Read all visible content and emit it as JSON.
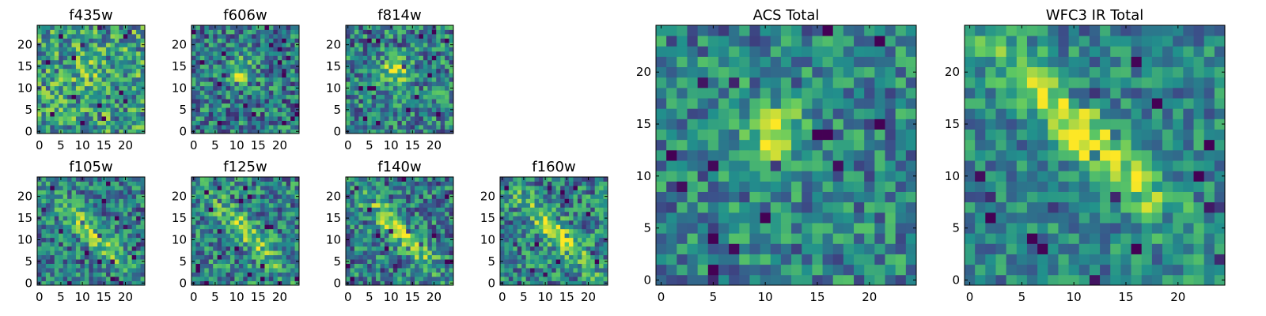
{
  "figure": {
    "background": "#ffffff",
    "colormap": "viridis",
    "colormap_stops": [
      "#440154",
      "#3b528b",
      "#21918c",
      "#5ec962",
      "#fde725"
    ]
  },
  "chart_data": [
    {
      "type": "heatmap",
      "title": "f435w",
      "grid": false,
      "xlim": [
        -0.5,
        24.5
      ],
      "ylim": [
        -0.5,
        24.5
      ],
      "xticks": [
        0,
        5,
        10,
        15,
        20
      ],
      "yticks": [
        0,
        5,
        10,
        15,
        20
      ],
      "size": [
        25,
        25
      ],
      "structure": "noise",
      "peak": [
        11,
        14
      ],
      "peak_strength": 0.15,
      "noise": 0.34,
      "bias": 0.55,
      "seed": 11
    },
    {
      "type": "heatmap",
      "title": "f606w",
      "grid": false,
      "xlim": [
        -0.5,
        24.5
      ],
      "ylim": [
        -0.5,
        24.5
      ],
      "xticks": [
        0,
        5,
        10,
        15,
        20
      ],
      "yticks": [
        0,
        5,
        10,
        15,
        20
      ],
      "size": [
        25,
        25
      ],
      "structure": "blob",
      "peak": [
        11,
        14
      ],
      "peak_strength": 0.4,
      "noise": 0.3,
      "bias": 0.42,
      "seed": 22
    },
    {
      "type": "heatmap",
      "title": "f814w",
      "grid": false,
      "xlim": [
        -0.5,
        24.5
      ],
      "ylim": [
        -0.5,
        24.5
      ],
      "xticks": [
        0,
        5,
        10,
        15,
        20
      ],
      "yticks": [
        0,
        5,
        10,
        15,
        20
      ],
      "size": [
        25,
        25
      ],
      "structure": "blob",
      "peak": [
        11,
        14
      ],
      "peak_strength": 0.45,
      "noise": 0.3,
      "bias": 0.45,
      "seed": 33
    },
    {
      "type": "heatmap",
      "title": "f105w",
      "grid": false,
      "xlim": [
        -0.5,
        24.5
      ],
      "ylim": [
        -0.5,
        24.5
      ],
      "xticks": [
        0,
        5,
        10,
        15,
        20
      ],
      "yticks": [
        0,
        5,
        10,
        15,
        20
      ],
      "size": [
        25,
        25
      ],
      "structure": "diagonal",
      "peak": [
        12,
        12
      ],
      "peak_strength": 0.4,
      "noise": 0.28,
      "bias": 0.42,
      "seed": 44
    },
    {
      "type": "heatmap",
      "title": "f125w",
      "grid": false,
      "xlim": [
        -0.5,
        24.5
      ],
      "ylim": [
        -0.5,
        24.5
      ],
      "xticks": [
        0,
        5,
        10,
        15,
        20
      ],
      "yticks": [
        0,
        5,
        10,
        15,
        20
      ],
      "size": [
        25,
        25
      ],
      "structure": "diagonal",
      "peak": [
        12,
        12
      ],
      "peak_strength": 0.35,
      "noise": 0.3,
      "bias": 0.45,
      "seed": 55
    },
    {
      "type": "heatmap",
      "title": "f140w",
      "grid": false,
      "xlim": [
        -0.5,
        24.5
      ],
      "ylim": [
        -0.5,
        24.5
      ],
      "xticks": [
        0,
        5,
        10,
        15,
        20
      ],
      "yticks": [
        0,
        5,
        10,
        15,
        20
      ],
      "size": [
        25,
        25
      ],
      "structure": "diagonal",
      "peak": [
        12,
        12
      ],
      "peak_strength": 0.4,
      "noise": 0.3,
      "bias": 0.42,
      "seed": 66
    },
    {
      "type": "heatmap",
      "title": "f160w",
      "grid": false,
      "xlim": [
        -0.5,
        24.5
      ],
      "ylim": [
        -0.5,
        24.5
      ],
      "xticks": [
        0,
        5,
        10,
        15,
        20
      ],
      "yticks": [
        0,
        5,
        10,
        15,
        20
      ],
      "size": [
        25,
        25
      ],
      "structure": "diagonal",
      "peak": [
        12,
        12
      ],
      "peak_strength": 0.4,
      "noise": 0.3,
      "bias": 0.45,
      "seed": 77
    },
    {
      "type": "heatmap",
      "title": "ACS Total",
      "grid": false,
      "xlim": [
        -0.5,
        24.5
      ],
      "ylim": [
        -0.5,
        24.5
      ],
      "xticks": [
        0,
        5,
        10,
        15,
        20
      ],
      "yticks": [
        0,
        5,
        10,
        15,
        20
      ],
      "size": [
        25,
        25
      ],
      "structure": "blob",
      "peak": [
        11,
        14
      ],
      "peak_strength": 0.5,
      "noise": 0.26,
      "bias": 0.45,
      "seed": 88
    },
    {
      "type": "heatmap",
      "title": "WFC3 IR Total",
      "grid": false,
      "xlim": [
        -0.5,
        24.5
      ],
      "ylim": [
        -0.5,
        24.5
      ],
      "xticks": [
        0,
        5,
        10,
        15,
        20
      ],
      "yticks": [
        0,
        5,
        10,
        15,
        20
      ],
      "size": [
        25,
        25
      ],
      "structure": "diagonal",
      "peak": [
        11,
        14
      ],
      "peak_strength": 0.5,
      "noise": 0.22,
      "bias": 0.45,
      "seed": 99
    }
  ]
}
